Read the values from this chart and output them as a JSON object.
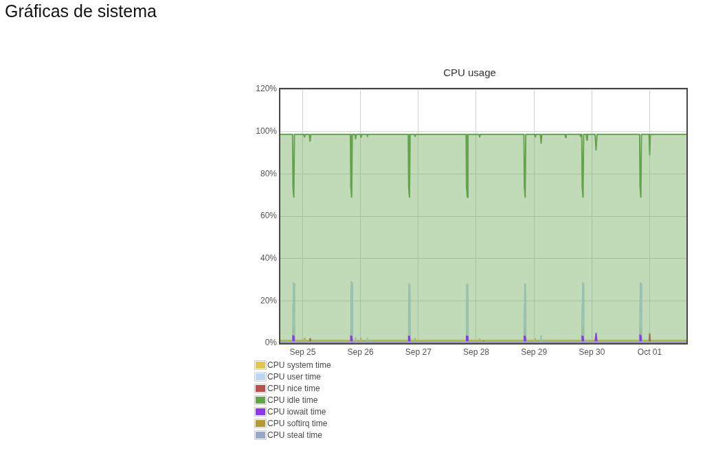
{
  "chart_data": {
    "type": "area",
    "title": "CPU usage",
    "annotations": [
      "Gráficas de sistema"
    ],
    "xlim": [
      "--09-24T14:45",
      "--10-01T15:15"
    ],
    "xticks": [
      {
        "value": "--09-25",
        "label": "Sep 25"
      },
      {
        "value": "--09-26",
        "label": "Sep 26"
      },
      {
        "value": "--09-27",
        "label": "Sep 27"
      },
      {
        "value": "--09-28",
        "label": "Sep 28"
      },
      {
        "value": "--09-29",
        "label": "Sep 29"
      },
      {
        "value": "--09-30",
        "label": "Sep 30"
      },
      {
        "value": "--10-01",
        "label": "Oct 01"
      }
    ],
    "ylim": [
      0,
      120
    ],
    "yticks": [
      {
        "value": 0,
        "label": "0%"
      },
      {
        "value": 20,
        "label": "20%"
      },
      {
        "value": 40,
        "label": "40%"
      },
      {
        "value": 60,
        "label": "60%"
      },
      {
        "value": 80,
        "label": "80%"
      },
      {
        "value": 100,
        "label": "100%"
      },
      {
        "value": 120,
        "label": "120%"
      }
    ],
    "grid": true,
    "legend": "bottom left",
    "series": [
      {
        "name": "CPU system time",
        "color": "#e4c64e",
        "x": [
          "--09-24T14:45",
          "--09-24T20:08",
          "--09-24T20:12",
          "--09-24T20:16",
          "--09-25T00:30",
          "--09-25T00:45",
          "--09-25T01:00",
          "--09-25T20:08",
          "--09-25T20:12",
          "--09-25T20:16",
          "--09-26T00:00",
          "--09-26T00:15",
          "--09-26T00:30",
          "--09-26T20:08",
          "--09-26T20:12",
          "--09-26T20:16",
          "--09-26T22:25",
          "--09-26T22:40",
          "--09-26T22:55",
          "--09-27T20:08",
          "--09-27T20:12",
          "--09-27T20:16",
          "--09-28T01:10",
          "--09-28T01:27",
          "--09-28T01:45",
          "--09-28T20:08",
          "--09-28T20:12",
          "--09-28T20:16",
          "--09-29T00:20",
          "--09-29T00:35",
          "--09-29T00:50",
          "--09-29T20:08",
          "--09-29T20:12",
          "--09-29T20:16",
          "--09-30T20:08",
          "--09-30T20:12",
          "--09-30T20:16",
          "--10-01T15:15"
        ],
        "values": [
          1.3,
          1.3,
          7.5,
          1.3,
          1.3,
          2.2,
          1.3,
          1.3,
          7.5,
          1.3,
          1.3,
          2.2,
          1.3,
          1.3,
          7.5,
          1.3,
          1.3,
          2.2,
          1.3,
          1.3,
          7.5,
          1.3,
          1.3,
          2,
          1.3,
          1.3,
          7.5,
          1.3,
          1.3,
          2,
          1.3,
          1.3,
          7.5,
          1.3,
          1.3,
          7.5,
          1.3,
          1.3
        ]
      },
      {
        "name": "CPU user time",
        "color": "#bcd5f2",
        "x": [
          "--09-24T14:45",
          "--09-24T19:50",
          "--09-24T20:00",
          "--09-24T20:10",
          "--09-24T20:30",
          "--09-24T20:40",
          "--09-25T19:50",
          "--09-25T20:00",
          "--09-25T20:10",
          "--09-25T20:30",
          "--09-25T20:40",
          "--09-25T21:45",
          "--09-25T21:58",
          "--09-25T22:10",
          "--09-26T02:45",
          "--09-26T02:55",
          "--09-26T03:05",
          "--09-26T19:50",
          "--09-26T20:00",
          "--09-26T20:10",
          "--09-26T20:30",
          "--09-26T20:40",
          "--09-27T19:50",
          "--09-27T20:00",
          "--09-27T20:10",
          "--09-27T20:30",
          "--09-27T20:40",
          "--09-28T19:50",
          "--09-28T20:00",
          "--09-28T20:10",
          "--09-28T20:30",
          "--09-28T20:40",
          "--09-29T02:45",
          "--09-29T02:56",
          "--09-29T03:10",
          "--09-29T19:50",
          "--09-29T20:00",
          "--09-29T20:10",
          "--09-29T20:30",
          "--09-29T20:40",
          "--09-29T21:45",
          "--09-29T21:56",
          "--09-29T22:05",
          "--09-30T19:50",
          "--09-30T20:00",
          "--09-30T20:10",
          "--09-30T20:30",
          "--09-30T20:40",
          "--10-01T15:15"
        ],
        "values": [
          0.4,
          0.4,
          18,
          28.5,
          28,
          0.4,
          0.4,
          18,
          29,
          28.5,
          0.4,
          0.4,
          2.6,
          0.4,
          0.4,
          2.5,
          0.4,
          0.4,
          18,
          28,
          27.5,
          0.4,
          0.4,
          18,
          28,
          27.5,
          0.4,
          0.4,
          18,
          28,
          27.5,
          0.4,
          0.4,
          3.5,
          0.4,
          0.4,
          18,
          28.5,
          28,
          0.4,
          0.4,
          1.5,
          0.4,
          0.4,
          18,
          28.5,
          28,
          0.4,
          0.4
        ]
      },
      {
        "name": "CPU nice time",
        "color": "#b5534b",
        "x": [
          "--09-24T14:45",
          "--09-25T02:55",
          "--09-25T03:05",
          "--09-25T03:15",
          "--09-28T02:55",
          "--09-28T03:05",
          "--09-28T03:15",
          "--09-30T23:45",
          "--10-01T00:00",
          "--10-01T00:15",
          "--10-01T15:15"
        ],
        "values": [
          0,
          0,
          2,
          0,
          0,
          1,
          0,
          0,
          4.4,
          0,
          0
        ]
      },
      {
        "name": "CPU idle time",
        "color": "#63a34b",
        "x": [
          "--09-24T14:45",
          "--09-24T19:50",
          "--09-24T20:00",
          "--09-24T20:20",
          "--09-24T20:35",
          "--09-25T00:25",
          "--09-25T00:45",
          "--09-25T01:05",
          "--09-25T02:45",
          "--09-25T03:05",
          "--09-25T03:25",
          "--09-25T19:50",
          "--09-25T20:00",
          "--09-25T20:20",
          "--09-25T20:35",
          "--09-25T21:40",
          "--09-25T21:58",
          "--09-25T22:15",
          "--09-26T00:00",
          "--09-26T00:15",
          "--09-26T00:30",
          "--09-26T02:40",
          "--09-26T02:55",
          "--09-26T03:10",
          "--09-26T19:50",
          "--09-26T20:00",
          "--09-26T20:20",
          "--09-26T20:35",
          "--09-26T22:25",
          "--09-26T22:40",
          "--09-26T22:55",
          "--09-27T19:50",
          "--09-27T20:00",
          "--09-27T20:20",
          "--09-27T20:35",
          "--09-28T01:10",
          "--09-28T01:27",
          "--09-28T01:45",
          "--09-28T19:50",
          "--09-28T20:00",
          "--09-28T20:20",
          "--09-28T20:35",
          "--09-29T00:20",
          "--09-29T00:35",
          "--09-29T00:50",
          "--09-29T02:40",
          "--09-29T02:56",
          "--09-29T03:15",
          "--09-29T12:50",
          "--09-29T13:06",
          "--09-29T13:20",
          "--09-29T19:05",
          "--09-29T19:20",
          "--09-29T19:35",
          "--09-29T19:50",
          "--09-29T20:00",
          "--09-29T20:20",
          "--09-29T20:35",
          "--09-29T21:40",
          "--09-29T21:56",
          "--09-29T22:10",
          "--09-30T01:20",
          "--09-30T01:45",
          "--09-30T02:10",
          "--09-30T19:50",
          "--09-30T20:00",
          "--09-30T20:20",
          "--09-30T20:35",
          "--09-30T23:45",
          "--10-01T00:00",
          "--10-01T00:15",
          "--10-01T15:15"
        ],
        "values": [
          98.7,
          98.7,
          74,
          69,
          98.7,
          98.7,
          97.5,
          98.7,
          98.7,
          95.5,
          98.7,
          98.7,
          74,
          69,
          98.7,
          98.7,
          96.5,
          98.7,
          98.7,
          97.4,
          98.7,
          98.7,
          97.7,
          98.7,
          98.7,
          74,
          69,
          98.7,
          98.7,
          97.7,
          98.7,
          98.7,
          74,
          69,
          98.7,
          98.7,
          97.5,
          98.7,
          98.7,
          74,
          69,
          98.7,
          98.7,
          97.5,
          98.7,
          98.7,
          94.5,
          98.7,
          98.7,
          97.2,
          98.7,
          98.7,
          97.7,
          98.7,
          98.7,
          74,
          69,
          98.7,
          98.7,
          96,
          98.7,
          98.7,
          91.3,
          98.7,
          98.7,
          74,
          69,
          98.7,
          98.7,
          89,
          98.7,
          98.7
        ]
      },
      {
        "name": "CPU iowait time",
        "color": "#8c3ae6",
        "x": [
          "--09-24T19:55",
          "--09-24T20:00",
          "--09-24T20:20",
          "--09-24T20:35",
          "--09-24T21:00",
          "--09-25T19:55",
          "--09-25T20:00",
          "--09-25T20:20",
          "--09-25T20:35",
          "--09-25T21:00",
          "--09-26T19:55",
          "--09-26T20:00",
          "--09-26T20:20",
          "--09-26T20:35",
          "--09-26T21:00",
          "--09-27T19:55",
          "--09-27T20:00",
          "--09-27T20:20",
          "--09-27T20:35",
          "--09-27T21:00",
          "--09-28T19:55",
          "--09-28T20:00",
          "--09-28T20:20",
          "--09-28T20:35",
          "--09-28T21:00",
          "--09-29T19:55",
          "--09-29T20:00",
          "--09-29T20:20",
          "--09-29T20:35",
          "--09-29T21:00",
          "--09-30T01:20",
          "--09-30T01:45",
          "--09-30T02:10",
          "--09-30T02:30",
          "--09-30T19:55",
          "--09-30T20:00",
          "--09-30T20:20",
          "--09-30T20:35"
        ],
        "values": [
          0,
          3.5,
          3.2,
          0,
          null,
          0,
          3.3,
          3.1,
          0,
          null,
          0,
          3.3,
          3.1,
          0,
          null,
          0,
          3.3,
          3.1,
          0,
          null,
          0,
          3.3,
          3.1,
          0,
          null,
          0,
          3.3,
          3.1,
          0,
          null,
          0,
          4.6,
          0,
          null,
          0,
          3.8,
          3.5,
          0
        ]
      },
      {
        "name": "CPU softirq time",
        "color": "#b3993a"
      },
      {
        "name": "CPU steal time",
        "color": "#97a9c6",
        "x": [
          "--09-24T14:45",
          "--10-01T15:15"
        ],
        "values": [
          0.6,
          0.6
        ]
      }
    ]
  }
}
